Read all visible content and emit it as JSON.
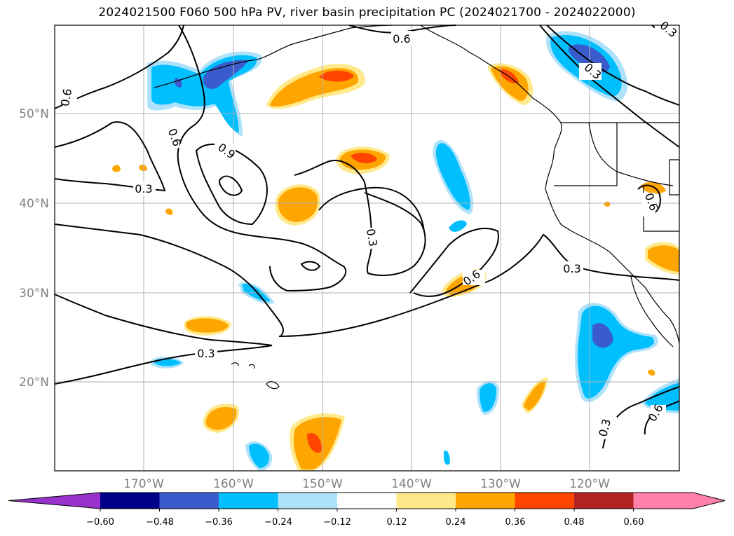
{
  "title": "2024021500 F060 500 hPa PV, river basin precipitation PC (2024021700 - 2024022000)",
  "map": {
    "lat_labels": [
      "50°N",
      "40°N",
      "30°N",
      "20°N"
    ],
    "lon_labels": [
      "170°W",
      "160°W",
      "150°W",
      "140°W",
      "130°W",
      "120°W"
    ],
    "contour_labels": [
      "0.6",
      "0.3",
      "0.6",
      "0.3",
      "0.6",
      "0.9",
      "0.3",
      "0.3",
      "0.6",
      "0.3",
      "0.6",
      "0.3",
      "0.3",
      "0.6",
      "0.3"
    ]
  },
  "colorbar": {
    "tick_labels": [
      "−0.60",
      "−0.48",
      "−0.36",
      "−0.24",
      "−0.12",
      "0.12",
      "0.24",
      "0.36",
      "0.48",
      "0.60"
    ],
    "colors": [
      "#9932cc",
      "#00008b",
      "#3a5bcc",
      "#00bfff",
      "#aee2fa",
      "#ffffff",
      "#ffe98a",
      "#ffa500",
      "#ff4500",
      "#b22222",
      "#ff80a8",
      "#ff80a8"
    ]
  },
  "colors": {
    "orange": "#ffa500",
    "lightorange": "#ffe98a",
    "red": "#ff4500",
    "cyan": "#00bfff",
    "lightcyan": "#aee2fa",
    "blue": "#3a5bcc"
  }
}
